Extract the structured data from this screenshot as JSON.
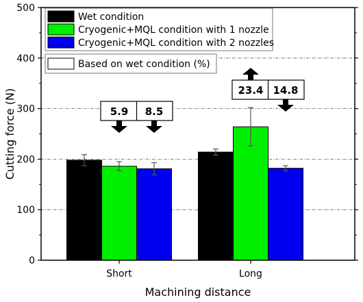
{
  "chart_data": {
    "type": "bar",
    "title": "",
    "xlabel": "Machining distance",
    "ylabel": "Cutting force (N)",
    "ylim": [
      0,
      500
    ],
    "yticks": [
      0,
      100,
      200,
      300,
      400,
      500
    ],
    "grid": true,
    "legend_position": "top-left",
    "categories": [
      "Short",
      "Long"
    ],
    "series": [
      {
        "name": "Wet condition",
        "color": "#000000",
        "values": [
          198,
          214
        ],
        "errors": [
          11,
          6
        ]
      },
      {
        "name": "Cryogenic+MQL condition with 1 nozzle",
        "color": "#00ee00",
        "values": [
          186,
          264
        ],
        "errors": [
          9,
          38
        ]
      },
      {
        "name": "Cryogenic+MQL condition with 2 nozzles",
        "color": "#0000ee",
        "values": [
          181,
          182
        ],
        "errors": [
          12,
          5
        ]
      }
    ],
    "legend_note": "Based on wet condition (%)",
    "annotations": [
      {
        "category": "Short",
        "series_index": 1,
        "label": "5.9",
        "direction": "down"
      },
      {
        "category": "Short",
        "series_index": 2,
        "label": "8.5",
        "direction": "down"
      },
      {
        "category": "Long",
        "series_index": 1,
        "label": "23.4",
        "direction": "up"
      },
      {
        "category": "Long",
        "series_index": 2,
        "label": "14.8",
        "direction": "down"
      }
    ]
  }
}
